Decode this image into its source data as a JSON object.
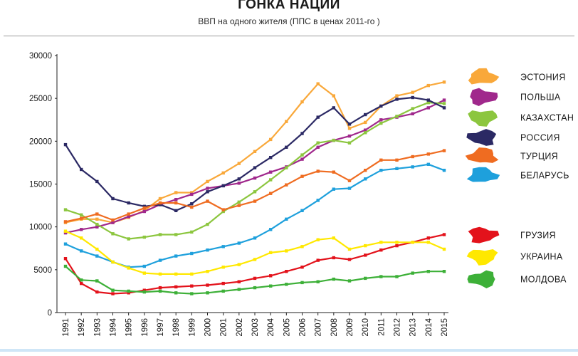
{
  "header": {
    "title": "ГОНКА НАЦИИ",
    "subtitle": "ВВП на одного жителя (ППС в ценах 2011-го )"
  },
  "chart_data": {
    "type": "line",
    "title": "ГОНКА НАЦИИ",
    "subtitle": "ВВП на одного жителя (ППС в ценах 2011-го )",
    "xlabel": "",
    "ylabel": "",
    "ylim": [
      0,
      30000
    ],
    "yticks": [
      0,
      5000,
      10000,
      15000,
      20000,
      25000,
      30000
    ],
    "x": [
      1991,
      1992,
      1993,
      1994,
      1995,
      1996,
      1997,
      1998,
      1999,
      2000,
      2001,
      2002,
      2003,
      2004,
      2005,
      2006,
      2007,
      2008,
      2009,
      2010,
      2011,
      2012,
      2013,
      2014,
      2015
    ],
    "grid": false,
    "legend_position": "right",
    "legend_groups": [
      [
        "ЭСТОНИЯ",
        "ПОЛЬША",
        "КАЗАХСТАН",
        "РОССИЯ",
        "ТУРЦИЯ",
        "БЕЛАРУСЬ"
      ],
      [
        "ГРУЗИЯ",
        "УКРАИНА",
        "МОЛДОВА"
      ]
    ],
    "series": [
      {
        "name": "ЭСТОНИЯ",
        "color": "#f9a83a",
        "icon": "estonia-map-icon",
        "values": [
          10500,
          10900,
          10900,
          10500,
          11100,
          11900,
          13300,
          14000,
          14000,
          15300,
          16300,
          17400,
          18800,
          20200,
          22300,
          24600,
          26700,
          25300,
          21500,
          22200,
          24100,
          25300,
          25700,
          26500,
          26900
        ]
      },
      {
        "name": "ПОЛЬША",
        "color": "#a0288c",
        "icon": "poland-map-icon",
        "values": [
          9300,
          9700,
          10000,
          10500,
          11200,
          11800,
          12600,
          13200,
          13800,
          14500,
          14800,
          15100,
          15700,
          16400,
          17000,
          17900,
          19300,
          20100,
          20600,
          21300,
          22500,
          22800,
          23200,
          23900,
          24800
        ]
      },
      {
        "name": "КАЗАХСТАН",
        "color": "#8cc63f",
        "icon": "kazakhstan-map-icon",
        "values": [
          12000,
          11400,
          10300,
          9200,
          8600,
          8800,
          9100,
          9100,
          9400,
          10300,
          11800,
          12900,
          14100,
          15500,
          16900,
          18400,
          19800,
          20100,
          19800,
          21000,
          22100,
          22900,
          23800,
          24500,
          24400
        ]
      },
      {
        "name": "РОССИЯ",
        "color": "#2b2964",
        "icon": "russia-map-icon",
        "values": [
          19600,
          16700,
          15300,
          13300,
          12800,
          12400,
          12600,
          11900,
          12700,
          14100,
          14800,
          15600,
          16900,
          18100,
          19300,
          20900,
          22800,
          23900,
          22000,
          23100,
          24100,
          24900,
          25100,
          24800,
          23900
        ]
      },
      {
        "name": "ТУРЦИЯ",
        "color": "#ef6c21",
        "icon": "turkey-map-icon",
        "values": [
          10600,
          11000,
          11500,
          10800,
          11500,
          12200,
          12800,
          12800,
          12300,
          13000,
          12000,
          12500,
          13000,
          13900,
          14900,
          15900,
          16500,
          16400,
          15400,
          16600,
          17800,
          17800,
          18200,
          18500,
          18900
        ]
      },
      {
        "name": "БЕЛАРУСЬ",
        "color": "#1ea0dc",
        "icon": "belarus-map-icon",
        "values": [
          8000,
          7200,
          6600,
          5900,
          5300,
          5400,
          6100,
          6600,
          6900,
          7300,
          7700,
          8100,
          8700,
          9700,
          10900,
          11900,
          13100,
          14400,
          14500,
          15600,
          16600,
          16800,
          17000,
          17300,
          16600
        ]
      },
      {
        "name": "ГРУЗИЯ",
        "color": "#e3121b",
        "icon": "georgia-map-icon",
        "values": [
          6300,
          3400,
          2400,
          2200,
          2300,
          2600,
          2900,
          3000,
          3100,
          3200,
          3400,
          3600,
          4000,
          4300,
          4800,
          5300,
          6100,
          6400,
          6200,
          6700,
          7300,
          7800,
          8200,
          8700,
          9100
        ]
      },
      {
        "name": "УКРАИНА",
        "color": "#ffe800",
        "icon": "ukraine-map-icon",
        "values": [
          9500,
          8700,
          7400,
          5900,
          5200,
          4600,
          4500,
          4500,
          4500,
          4800,
          5300,
          5600,
          6200,
          7000,
          7200,
          7700,
          8500,
          8700,
          7400,
          7800,
          8200,
          8200,
          8200,
          8200,
          7400
        ]
      },
      {
        "name": "МОЛДОВА",
        "color": "#3db038",
        "icon": "moldova-map-icon",
        "values": [
          5400,
          3800,
          3700,
          2600,
          2500,
          2400,
          2500,
          2300,
          2200,
          2300,
          2500,
          2700,
          2900,
          3100,
          3300,
          3500,
          3600,
          3900,
          3700,
          4000,
          4200,
          4200,
          4600,
          4800,
          4800
        ]
      }
    ]
  }
}
